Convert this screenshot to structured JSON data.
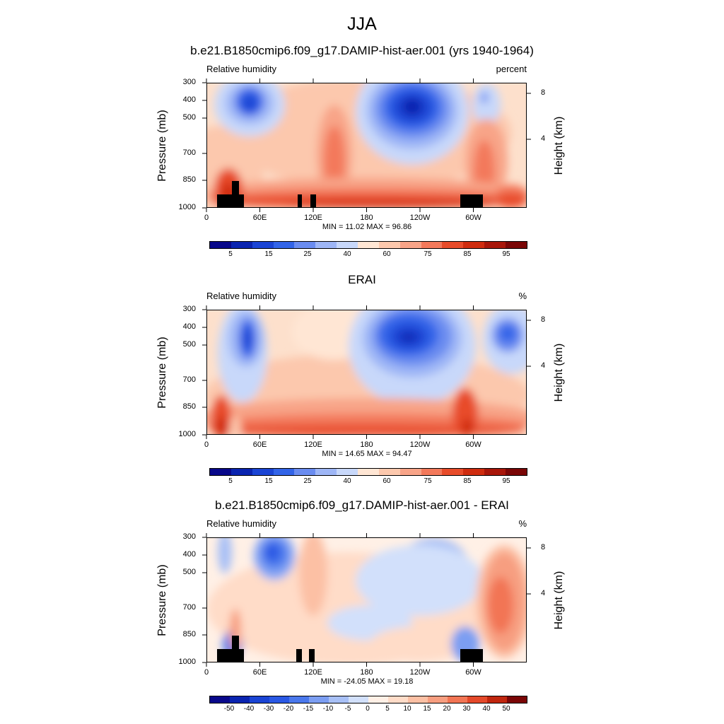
{
  "page": {
    "title": "JJA"
  },
  "panels": [
    {
      "id": "model",
      "title": "b.e21.B1850cmip6.f09_g17.DAMIP-hist-aer.001 (yrs 1940-1964)",
      "left_label": "Relative humidity",
      "right_label": "percent",
      "stats": "MIN =  11.02  MAX =  96.86",
      "colorbar_labels": [
        "5",
        "15",
        "25",
        "40",
        "60",
        "75",
        "85",
        "95"
      ],
      "colorbar_colors": [
        "#08088a",
        "#0a24b0",
        "#1a44d4",
        "#3264e8",
        "#6a8cf0",
        "#9eb6f6",
        "#c8d8fa",
        "#ffe6d4",
        "#fcc8ad",
        "#f8a488",
        "#f3795b",
        "#e84c2a",
        "#cf2c0f",
        "#a8160a",
        "#7a0606"
      ]
    },
    {
      "id": "obs",
      "title": "ERAI",
      "left_label": "Relative humidity",
      "right_label": "%",
      "stats": "MIN =  14.65  MAX =  94.47",
      "colorbar_labels": [
        "5",
        "15",
        "25",
        "40",
        "60",
        "75",
        "85",
        "95"
      ],
      "colorbar_colors": [
        "#08088a",
        "#0a24b0",
        "#1a44d4",
        "#3264e8",
        "#6a8cf0",
        "#9eb6f6",
        "#c8d8fa",
        "#ffe6d4",
        "#fcc8ad",
        "#f8a488",
        "#f3795b",
        "#e84c2a",
        "#cf2c0f",
        "#a8160a",
        "#7a0606"
      ]
    },
    {
      "id": "diff",
      "title": "b.e21.B1850cmip6.f09_g17.DAMIP-hist-aer.001 - ERAI",
      "left_label": "Relative humidity",
      "right_label": "%",
      "stats": "MIN = -24.05  MAX =  19.18",
      "colorbar_labels": [
        "-50",
        "-40",
        "-30",
        "-20",
        "-15",
        "-10",
        "-5",
        "0",
        "5",
        "10",
        "15",
        "20",
        "30",
        "40",
        "50"
      ],
      "colorbar_colors": [
        "#08088a",
        "#0a24b0",
        "#1a44d4",
        "#2a58e4",
        "#4a78ec",
        "#7c9ef2",
        "#a8c0f6",
        "#d2e0fb",
        "#fff0e6",
        "#ffdcc8",
        "#fcc0a4",
        "#f79e80",
        "#f27554",
        "#e4492a",
        "#c0260e",
        "#7a0606"
      ]
    }
  ],
  "chart_data": [
    {
      "type": "heatmap",
      "title": "b.e21.B1850cmip6.f09_g17.DAMIP-hist-aer.001 (yrs 1940-1964)",
      "variable": "Relative humidity",
      "units": "percent",
      "xlabel": "",
      "ylabel": "Pressure (mb)",
      "y2label": "Height (km)",
      "x_ticks": [
        "0",
        "60E",
        "120E",
        "180",
        "120W",
        "60W"
      ],
      "y_ticks": [
        "300",
        "400",
        "500",
        "700",
        "850",
        "1000"
      ],
      "y2_ticks": [
        "8",
        "4"
      ],
      "min": 11.02,
      "max": 96.86,
      "levels": [
        5,
        10,
        15,
        20,
        25,
        30,
        40,
        50,
        60,
        65,
        75,
        80,
        85,
        90,
        95
      ]
    },
    {
      "type": "heatmap",
      "title": "ERAI",
      "variable": "Relative humidity",
      "units": "%",
      "xlabel": "",
      "ylabel": "Pressure (mb)",
      "y2label": "Height (km)",
      "x_ticks": [
        "0",
        "60E",
        "120E",
        "180",
        "120W",
        "60W"
      ],
      "y_ticks": [
        "300",
        "400",
        "500",
        "700",
        "850",
        "1000"
      ],
      "y2_ticks": [
        "8",
        "4"
      ],
      "min": 14.65,
      "max": 94.47,
      "levels": [
        5,
        10,
        15,
        20,
        25,
        30,
        40,
        50,
        60,
        65,
        75,
        80,
        85,
        90,
        95
      ]
    },
    {
      "type": "heatmap",
      "title": "b.e21.B1850cmip6.f09_g17.DAMIP-hist-aer.001 - ERAI",
      "variable": "Relative humidity",
      "units": "%",
      "xlabel": "",
      "ylabel": "Pressure (mb)",
      "y2label": "Height (km)",
      "x_ticks": [
        "0",
        "60E",
        "120E",
        "180",
        "120W",
        "60W"
      ],
      "y_ticks": [
        "300",
        "400",
        "500",
        "700",
        "850",
        "1000"
      ],
      "y2_ticks": [
        "8",
        "4"
      ],
      "min": -24.05,
      "max": 19.18,
      "levels": [
        -50,
        -40,
        -30,
        -20,
        -15,
        -10,
        -5,
        0,
        5,
        10,
        15,
        20,
        30,
        40,
        50
      ]
    }
  ]
}
